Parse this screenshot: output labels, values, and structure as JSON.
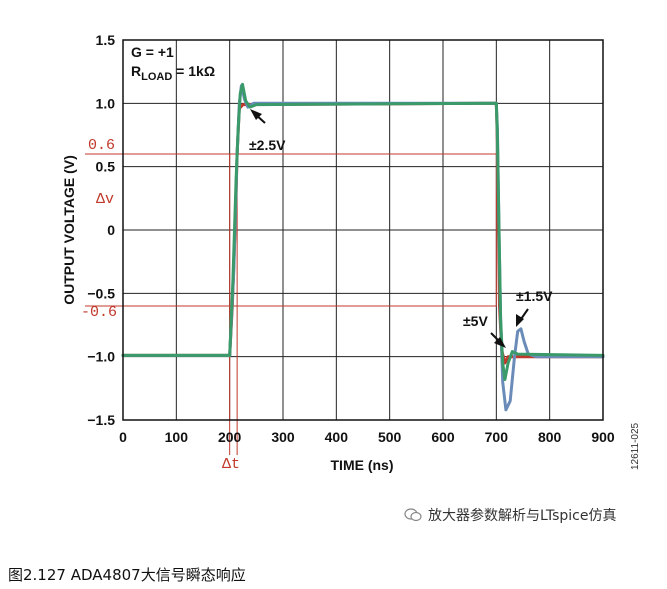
{
  "chart_data": {
    "type": "line",
    "xlabel": "TIME (ns)",
    "ylabel": "OUTPUT VOLTAGE (V)",
    "xlim": [
      0,
      900
    ],
    "ylim": [
      -1.5,
      1.5
    ],
    "x_ticks": [
      0,
      100,
      200,
      300,
      400,
      500,
      600,
      700,
      800,
      900
    ],
    "y_ticks": [
      -1.5,
      -1.0,
      -0.5,
      0,
      0.5,
      1.0,
      1.5
    ],
    "y_tick_labels": [
      "−1.5",
      "−1.0",
      "−0.5",
      "0",
      "0.5",
      "1.0",
      "1.5"
    ],
    "grid": true,
    "series": [
      {
        "color": "#c0392b",
        "points": [
          [
            0,
            -0.99
          ],
          [
            195,
            -0.99
          ],
          [
            200,
            -0.99
          ],
          [
            205,
            -0.6
          ],
          [
            210,
            0.0
          ],
          [
            214,
            0.6
          ],
          [
            218,
            0.96
          ],
          [
            225,
            0.99
          ],
          [
            700,
            1.0
          ],
          [
            702,
            0.7
          ],
          [
            704,
            0.0
          ],
          [
            706,
            -0.6
          ],
          [
            710,
            -0.95
          ],
          [
            716,
            -1.05
          ],
          [
            722,
            -1.0
          ],
          [
            900,
            -1.0
          ]
        ]
      },
      {
        "color": "#6b8cb8",
        "points": [
          [
            0,
            -0.99
          ],
          [
            195,
            -0.99
          ],
          [
            200,
            -0.99
          ],
          [
            208,
            -0.3
          ],
          [
            214,
            0.6
          ],
          [
            218,
            1.0
          ],
          [
            222,
            1.14
          ],
          [
            228,
            1.03
          ],
          [
            234,
            0.97
          ],
          [
            245,
            1.0
          ],
          [
            700,
            1.0
          ],
          [
            702,
            0.8
          ],
          [
            705,
            0.0
          ],
          [
            708,
            -0.7
          ],
          [
            712,
            -1.2
          ],
          [
            718,
            -1.42
          ],
          [
            726,
            -1.35
          ],
          [
            734,
            -1.0
          ],
          [
            740,
            -0.8
          ],
          [
            746,
            -0.78
          ],
          [
            752,
            -0.88
          ],
          [
            760,
            -0.98
          ],
          [
            775,
            -1.0
          ],
          [
            900,
            -1.0
          ]
        ]
      },
      {
        "color": "#3a9a6a",
        "points": [
          [
            0,
            -0.99
          ],
          [
            195,
            -0.99
          ],
          [
            200,
            -0.99
          ],
          [
            206,
            -0.4
          ],
          [
            212,
            0.4
          ],
          [
            216,
            0.8
          ],
          [
            220,
            1.08
          ],
          [
            224,
            1.15
          ],
          [
            230,
            1.02
          ],
          [
            238,
            0.97
          ],
          [
            250,
            0.99
          ],
          [
            700,
            1.0
          ],
          [
            702,
            0.75
          ],
          [
            705,
            0.0
          ],
          [
            708,
            -0.7
          ],
          [
            712,
            -1.05
          ],
          [
            716,
            -1.18
          ],
          [
            722,
            -1.05
          ],
          [
            730,
            -0.96
          ],
          [
            740,
            -0.98
          ],
          [
            900,
            -0.99
          ]
        ]
      }
    ],
    "annotations": {
      "gain": "G = +1",
      "rload_main": "R",
      "rload_sub": "LOAD",
      "rload_rest": " = 1kΩ",
      "label_2_5v": "±2.5V",
      "label_5v": "±5V",
      "label_1_5v": "±1.5V",
      "level_pos": "0.6",
      "level_neg": "-0.6",
      "delta_v": "Δv",
      "delta_t": "Δt",
      "figure_id": "12611-025"
    },
    "marker_lines": {
      "y_levels": [
        0.6,
        -0.6
      ],
      "x_levels": [
        200,
        214
      ],
      "color": "#c0392b"
    }
  },
  "watermark": "放大器参数解析与LTspice仿真",
  "caption": "图2.127 ADA4807大信号瞬态响应"
}
